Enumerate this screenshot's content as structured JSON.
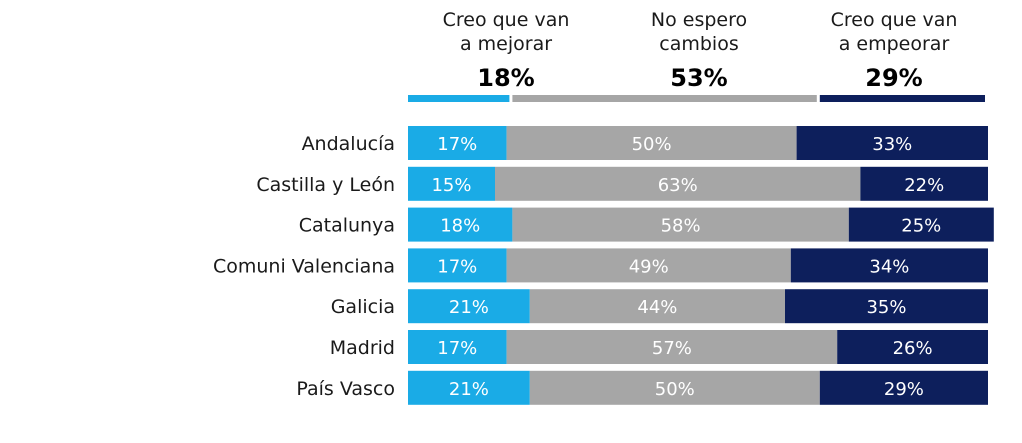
{
  "chart_data": {
    "type": "bar",
    "stacked": true,
    "orientation": "horizontal",
    "normalized": true,
    "unit": "%",
    "title": "",
    "xlabel": "",
    "ylabel": "",
    "xlim": [
      0,
      100
    ],
    "legend": "top",
    "grid": false,
    "categories": [
      "Andalucía",
      "Castilla y León",
      "Catalunya",
      "Comuni Valenciana",
      "Galicia",
      "Madrid",
      "País Vasco"
    ],
    "series": [
      {
        "name": "Creo que van a mejorar",
        "legend_lines": [
          "Creo que van",
          "a mejorar"
        ],
        "total": 18,
        "total_label": "18%",
        "color": "#1aabe6",
        "label_color": "#ffffff",
        "values": [
          17,
          15,
          18,
          17,
          21,
          17,
          21
        ],
        "labels": [
          "17%",
          "15%",
          "18%",
          "17%",
          "21%",
          "17%",
          "21%"
        ]
      },
      {
        "name": "No espero cambios",
        "legend_lines": [
          "No espero",
          "cambios"
        ],
        "total": 53,
        "total_label": "53%",
        "color": "#a6a6a6",
        "label_color": "#ffffff",
        "values": [
          50,
          63,
          58,
          49,
          44,
          57,
          50
        ],
        "labels": [
          "50%",
          "63%",
          "58%",
          "49%",
          "44%",
          "57%",
          "50%"
        ]
      },
      {
        "name": "Creo que van a empeorar",
        "legend_lines": [
          "Creo que van",
          "a empeorar"
        ],
        "total": 29,
        "total_label": "29%",
        "color": "#0d1f5c",
        "label_color": "#ffffff",
        "values": [
          33,
          22,
          25,
          34,
          35,
          26,
          29
        ],
        "labels": [
          "33%",
          "22%",
          "25%",
          "34%",
          "35%",
          "26%",
          "29%"
        ]
      }
    ]
  }
}
